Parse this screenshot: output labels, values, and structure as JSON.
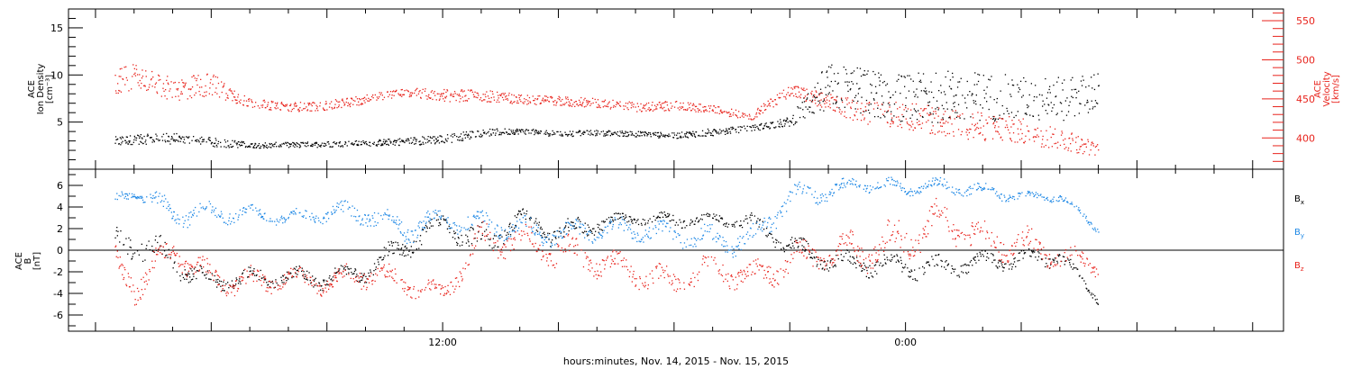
{
  "chart_data": [
    {
      "type": "scatter",
      "panel": "top",
      "ylabel_lines": [
        "ACE",
        "Ion Density",
        "[cm⁻³]"
      ],
      "ylim": [
        0,
        17
      ],
      "yticks": [
        "5",
        "10",
        "15"
      ],
      "yticks_values": [
        5,
        10,
        15
      ],
      "y2label_lines": [
        "ACE",
        "Velocity",
        "[km/s]"
      ],
      "y2lim": [
        360,
        565
      ],
      "y2ticks": [
        "400",
        "450",
        "500",
        "550"
      ],
      "y2ticks_values": [
        400,
        450,
        500,
        550
      ],
      "x_hours": [
        3.5,
        4,
        5,
        6,
        7,
        8,
        9,
        10,
        11,
        12,
        13,
        14,
        15,
        16,
        17,
        18,
        19,
        20,
        21,
        22,
        23,
        24,
        25,
        26,
        27,
        28,
        29
      ],
      "series": [
        {
          "color": "#000000",
          "axis": "left",
          "values": [
            3.0,
            3.2,
            3.3,
            2.9,
            2.6,
            2.6,
            2.7,
            2.8,
            3.0,
            3.2,
            3.9,
            4.1,
            3.8,
            3.9,
            3.8,
            3.6,
            4.0,
            4.4,
            5.1,
            9.0,
            8.2,
            7.5,
            7.8,
            7.8,
            7.5,
            7.4,
            8.3
          ],
          "spread": [
            0.5,
            0.5,
            0.6,
            0.5,
            0.3,
            0.3,
            0.3,
            0.3,
            0.4,
            0.5,
            0.4,
            0.3,
            0.3,
            0.3,
            0.3,
            0.3,
            0.4,
            0.3,
            0.5,
            2.5,
            2.5,
            2.6,
            2.8,
            2.6,
            2.4,
            2.4,
            2.0
          ]
        },
        {
          "color": "#e8231c",
          "axis": "right",
          "values": [
            470,
            480,
            462,
            470,
            445,
            440,
            442,
            450,
            460,
            455,
            455,
            450,
            448,
            445,
            440,
            442,
            437,
            428,
            462,
            445,
            432,
            430,
            420,
            415,
            410,
            400,
            385
          ],
          "spread": [
            18,
            15,
            15,
            15,
            6,
            6,
            6,
            6,
            6,
            8,
            8,
            6,
            6,
            6,
            6,
            6,
            5,
            5,
            8,
            12,
            15,
            18,
            18,
            18,
            16,
            15,
            8
          ]
        }
      ]
    },
    {
      "type": "scatter",
      "panel": "bottom",
      "ylabel_lines": [
        "ACE",
        "B",
        "[nT]"
      ],
      "ylim": [
        -7.5,
        7.5
      ],
      "yticks": [
        "-6",
        "-4",
        "-2",
        "0",
        "2",
        "4",
        "6"
      ],
      "yticks_values": [
        -6,
        -4,
        -2,
        0,
        2,
        4,
        6
      ],
      "zero_line": true,
      "x_hours": [
        3.5,
        4,
        5,
        6,
        7,
        8,
        9,
        10,
        11,
        12,
        13,
        14,
        15,
        16,
        17,
        18,
        19,
        20,
        21,
        22,
        23,
        24,
        25,
        26,
        27,
        28,
        29
      ],
      "series": [
        {
          "name": "Bx",
          "label_main": "B",
          "label_sub": "x",
          "color": "#000000",
          "values": [
            0.5,
            1.0,
            -1.0,
            -3.0,
            -2.5,
            -2.5,
            -2.5,
            -2.0,
            0.5,
            2.5,
            0.5,
            3.0,
            1.5,
            2.5,
            3.0,
            2.8,
            3.0,
            2.5,
            0.5,
            -1.0,
            -1.2,
            -1.5,
            -1.5,
            -1.0,
            -0.8,
            -0.5,
            -4.5
          ],
          "spread": [
            1.5,
            2.0,
            1.5,
            1.0,
            1.0,
            1.0,
            1.2,
            1.0,
            1.5,
            1.0,
            2.0,
            1.0,
            1.5,
            1.0,
            0.5,
            0.8,
            0.5,
            1.0,
            1.2,
            1.0,
            1.2,
            1.2,
            1.2,
            1.0,
            1.0,
            1.0,
            0.5
          ]
        },
        {
          "name": "By",
          "label_main": "B",
          "label_sub": "y",
          "color": "#1e88e5",
          "values": [
            4.5,
            5.5,
            3.5,
            3.5,
            3.5,
            3.0,
            3.5,
            3.5,
            2.0,
            3.0,
            2.5,
            2.0,
            1.5,
            2.0,
            2.0,
            1.5,
            1.0,
            1.0,
            5.0,
            5.5,
            6.2,
            5.8,
            6.0,
            5.5,
            5.0,
            5.0,
            2.0
          ],
          "spread": [
            1.0,
            0.5,
            1.5,
            1.2,
            0.8,
            0.8,
            1.0,
            1.2,
            1.5,
            1.2,
            1.2,
            1.2,
            1.5,
            1.2,
            1.2,
            1.2,
            1.5,
            1.5,
            1.5,
            1.0,
            0.8,
            0.8,
            0.8,
            0.8,
            0.5,
            0.5,
            0.5
          ]
        },
        {
          "name": "Bz",
          "label_main": "B",
          "label_sub": "z",
          "color": "#e8231c",
          "values": [
            -1.5,
            -3.0,
            0.0,
            -2.5,
            -3.0,
            -2.5,
            -3.0,
            -2.0,
            -3.0,
            -4.0,
            1.0,
            1.0,
            0.0,
            -1.0,
            -2.0,
            -3.0,
            -1.5,
            -2.5,
            -1.0,
            0.0,
            0.0,
            1.0,
            3.0,
            1.0,
            0.5,
            -0.5,
            -1.5
          ],
          "spread": [
            2.0,
            2.0,
            1.5,
            1.5,
            1.5,
            1.0,
            1.2,
            1.5,
            1.2,
            1.0,
            2.0,
            1.5,
            2.0,
            1.5,
            1.5,
            1.5,
            1.5,
            1.5,
            2.0,
            2.0,
            2.0,
            2.5,
            2.0,
            2.0,
            2.0,
            1.5,
            1.0
          ]
        }
      ]
    }
  ],
  "x_axis": {
    "xlim_hours": [
      2.3,
      33.8
    ],
    "tick_labels": [
      {
        "hour": 12,
        "label": "12:00"
      },
      {
        "hour": 24,
        "label": "0:00"
      }
    ],
    "major_tick_hours": [
      3,
      6,
      9,
      12,
      15,
      18,
      21,
      24,
      27,
      30,
      33
    ],
    "minor_tick_hours": [
      4,
      5,
      7,
      8,
      10,
      11,
      13,
      14,
      16,
      17,
      19,
      20,
      22,
      23,
      25,
      26,
      28,
      29,
      31,
      32
    ],
    "data_end_hour": 29.0,
    "xlabel": "hours:minutes, Nov. 14, 2015 - Nov. 15, 2015"
  }
}
